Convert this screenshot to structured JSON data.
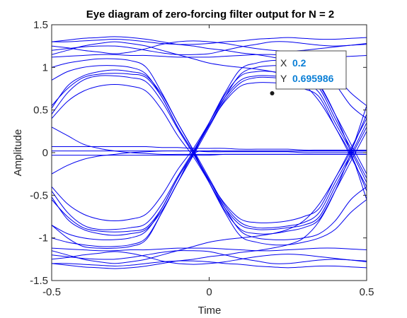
{
  "chart_data": {
    "type": "line",
    "title": "Eye diagram of zero-forcing filter output for N = 2",
    "xlabel": "Time",
    "ylabel": "Amplitude",
    "xlim": [
      -0.5,
      0.5
    ],
    "ylim": [
      -1.5,
      1.5
    ],
    "xticks": [
      -0.5,
      0,
      0.5
    ],
    "xtick_labels": [
      "-0.5",
      "0",
      "0.5"
    ],
    "yticks": [
      -1.5,
      -1,
      -0.5,
      0,
      0.5,
      1,
      1.5
    ],
    "ytick_labels": [
      "-1.5",
      "-1",
      "-0.5",
      "0",
      "0.5",
      "1",
      "1.5"
    ],
    "grid": false,
    "line_color": "#0000ee",
    "x": [
      -0.5,
      -0.45,
      -0.4,
      -0.35,
      -0.3,
      -0.25,
      -0.2,
      -0.15,
      -0.1,
      -0.05,
      0,
      0.05,
      0.1,
      0.15,
      0.2,
      0.25,
      0.3,
      0.35,
      0.4,
      0.45,
      0.5
    ],
    "series": [
      {
        "values": [
          1.3,
          1.3,
          1.31,
          1.32,
          1.33,
          1.32,
          1.3,
          1.28,
          1.27,
          1.27,
          1.28,
          1.3,
          1.31,
          1.33,
          1.34,
          1.35,
          1.34,
          1.33,
          1.33,
          1.34,
          1.35
        ]
      },
      {
        "values": [
          1.2,
          1.22,
          1.24,
          1.25,
          1.25,
          1.23,
          1.2,
          1.17,
          1.15,
          1.15,
          1.16,
          1.2,
          1.24,
          1.27,
          1.3,
          1.3,
          1.28,
          1.26,
          1.25,
          1.26,
          1.27
        ]
      },
      {
        "values": [
          1.12,
          1.13,
          1.14,
          1.15,
          1.15,
          1.14,
          1.14,
          1.13,
          1.12,
          1.12,
          1.12,
          1.13,
          1.14,
          1.15,
          1.15,
          1.14,
          1.13,
          1.12,
          1.12,
          1.13,
          1.14
        ]
      },
      {
        "values": [
          1.25,
          1.23,
          1.2,
          1.18,
          1.16,
          1.18,
          1.22,
          1.27,
          1.3,
          1.31,
          1.3,
          1.28,
          1.25,
          1.22,
          1.2,
          1.19,
          1.2,
          1.22,
          1.24,
          1.26,
          1.28
        ]
      },
      {
        "values": [
          -1.3,
          -1.3,
          -1.31,
          -1.32,
          -1.33,
          -1.32,
          -1.3,
          -1.28,
          -1.27,
          -1.27,
          -1.28,
          -1.3,
          -1.31,
          -1.33,
          -1.34,
          -1.35,
          -1.34,
          -1.33,
          -1.33,
          -1.34,
          -1.35
        ]
      },
      {
        "values": [
          -1.2,
          -1.22,
          -1.24,
          -1.25,
          -1.25,
          -1.23,
          -1.2,
          -1.17,
          -1.15,
          -1.15,
          -1.16,
          -1.2,
          -1.24,
          -1.27,
          -1.3,
          -1.3,
          -1.28,
          -1.26,
          -1.25,
          -1.26,
          -1.27
        ]
      },
      {
        "values": [
          -1.12,
          -1.13,
          -1.14,
          -1.15,
          -1.15,
          -1.14,
          -1.14,
          -1.13,
          -1.12,
          -1.12,
          -1.12,
          -1.13,
          -1.14,
          -1.15,
          -1.15,
          -1.14,
          -1.13,
          -1.12,
          -1.12,
          -1.13,
          -1.14
        ]
      },
      {
        "values": [
          -1.25,
          -1.23,
          -1.2,
          -1.18,
          -1.16,
          -1.18,
          -1.22,
          -1.27,
          -1.3,
          -1.31,
          -1.3,
          -1.28,
          -1.25,
          -1.22,
          -1.2,
          -1.19,
          -1.2,
          -1.22,
          -1.24,
          -1.26,
          -1.28
        ]
      },
      {
        "values": [
          0.55,
          0.75,
          0.88,
          0.92,
          0.93,
          0.92,
          0.88,
          0.65,
          0.3,
          0.0,
          -0.35,
          -0.65,
          -0.85,
          -0.9,
          -0.9,
          -0.88,
          -0.85,
          -0.75,
          -0.4,
          -0.05,
          0.3
        ]
      },
      {
        "values": [
          0.45,
          0.7,
          0.85,
          0.9,
          0.9,
          0.88,
          0.83,
          0.6,
          0.28,
          -0.02,
          -0.33,
          -0.6,
          -0.78,
          -0.82,
          -0.82,
          -0.8,
          -0.75,
          -0.65,
          -0.3,
          0.02,
          0.45
        ]
      },
      {
        "values": [
          0.52,
          0.78,
          0.9,
          0.95,
          0.97,
          0.95,
          0.9,
          0.68,
          0.35,
          0.03,
          -0.3,
          -0.62,
          -0.82,
          -0.88,
          -0.88,
          -0.86,
          -0.82,
          -0.7,
          -0.35,
          -0.02,
          0.35
        ]
      },
      {
        "values": [
          0.4,
          0.6,
          0.72,
          0.78,
          0.8,
          0.78,
          0.72,
          0.5,
          0.2,
          -0.05,
          -0.35,
          -0.68,
          -0.9,
          -0.95,
          -0.95,
          -0.92,
          -0.88,
          -0.78,
          -0.45,
          -0.1,
          0.25
        ]
      },
      {
        "values": [
          -0.55,
          -0.75,
          -0.88,
          -0.92,
          -0.93,
          -0.92,
          -0.88,
          -0.65,
          -0.3,
          0.0,
          0.35,
          0.65,
          0.85,
          0.9,
          0.9,
          0.88,
          0.85,
          0.75,
          0.4,
          0.05,
          -0.3
        ]
      },
      {
        "values": [
          -0.45,
          -0.7,
          -0.85,
          -0.9,
          -0.9,
          -0.88,
          -0.83,
          -0.6,
          -0.28,
          0.02,
          0.33,
          0.6,
          0.78,
          0.82,
          0.82,
          0.8,
          0.75,
          0.65,
          0.3,
          -0.02,
          -0.45
        ]
      },
      {
        "values": [
          -0.52,
          -0.78,
          -0.9,
          -0.95,
          -0.97,
          -0.95,
          -0.9,
          -0.68,
          -0.35,
          -0.03,
          0.3,
          0.62,
          0.82,
          0.88,
          0.88,
          0.86,
          0.82,
          0.7,
          0.35,
          0.02,
          -0.35
        ]
      },
      {
        "values": [
          -0.4,
          -0.6,
          -0.72,
          -0.78,
          -0.8,
          -0.78,
          -0.72,
          -0.5,
          -0.2,
          0.05,
          0.35,
          0.68,
          0.9,
          0.95,
          0.95,
          0.92,
          0.88,
          0.78,
          0.45,
          0.1,
          -0.25
        ]
      },
      {
        "values": [
          1.0,
          1.05,
          1.08,
          1.1,
          1.1,
          1.08,
          1.0,
          0.7,
          0.35,
          0.02,
          -0.35,
          -0.7,
          -0.98,
          -1.05,
          -1.08,
          -1.08,
          -1.05,
          -1.0,
          -0.9,
          -0.7,
          -0.55
        ]
      },
      {
        "values": [
          0.85,
          0.95,
          1.0,
          1.02,
          1.02,
          1.0,
          0.92,
          0.65,
          0.3,
          0.0,
          -0.32,
          -0.65,
          -0.92,
          -1.0,
          -1.02,
          -1.02,
          -1.0,
          -0.95,
          -0.8,
          -0.55,
          -0.4
        ]
      },
      {
        "values": [
          -1.0,
          -1.05,
          -1.08,
          -1.1,
          -1.1,
          -1.08,
          -1.0,
          -0.7,
          -0.35,
          -0.02,
          0.35,
          0.7,
          0.98,
          1.05,
          1.08,
          1.08,
          1.05,
          1.0,
          0.9,
          0.7,
          0.55
        ]
      },
      {
        "values": [
          -0.85,
          -0.95,
          -1.0,
          -1.02,
          -1.02,
          -1.0,
          -0.92,
          -0.65,
          -0.3,
          0.0,
          0.32,
          0.65,
          0.92,
          1.0,
          1.02,
          1.02,
          1.0,
          0.95,
          0.8,
          0.55,
          0.4
        ]
      },
      {
        "values": [
          1.15,
          1.2,
          1.25,
          1.28,
          1.3,
          1.28,
          1.25,
          1.2,
          1.15,
          1.1,
          1.05,
          1.02,
          1.0,
          0.98,
          0.95,
          0.9,
          0.8,
          0.6,
          0.3,
          -0.05,
          -0.4
        ]
      },
      {
        "values": [
          1.3,
          1.32,
          1.34,
          1.35,
          1.36,
          1.35,
          1.33,
          1.3,
          1.27,
          1.25,
          1.22,
          1.2,
          1.17,
          1.15,
          1.12,
          1.08,
          1.0,
          0.8,
          0.45,
          0.0,
          -0.55
        ]
      },
      {
        "values": [
          -1.15,
          -1.2,
          -1.25,
          -1.28,
          -1.3,
          -1.28,
          -1.25,
          -1.2,
          -1.15,
          -1.1,
          -1.05,
          -1.02,
          -1.0,
          -0.98,
          -0.95,
          -0.9,
          -0.8,
          -0.6,
          -0.3,
          0.05,
          0.4
        ]
      },
      {
        "values": [
          -1.3,
          -1.32,
          -1.34,
          -1.35,
          -1.36,
          -1.35,
          -1.33,
          -1.3,
          -1.27,
          -1.25,
          -1.22,
          -1.2,
          -1.17,
          -1.15,
          -1.12,
          -1.08,
          -1.0,
          -0.8,
          -0.45,
          0.0,
          0.55
        ]
      },
      {
        "values": [
          0.07,
          0.07,
          0.07,
          0.07,
          0.07,
          0.07,
          0.07,
          0.06,
          0.06,
          0.05,
          0.05,
          0.05,
          0.04,
          0.04,
          0.04,
          0.04,
          0.03,
          0.03,
          0.03,
          0.03,
          0.03
        ]
      },
      {
        "values": [
          -0.03,
          -0.03,
          -0.03,
          -0.03,
          -0.03,
          -0.03,
          -0.03,
          -0.03,
          -0.03,
          -0.03,
          -0.03,
          -0.02,
          -0.02,
          -0.02,
          -0.02,
          -0.02,
          -0.02,
          -0.02,
          -0.02,
          -0.02,
          -0.02
        ]
      },
      {
        "values": [
          0.02,
          0.02,
          0.02,
          0.02,
          0.02,
          0.02,
          0.02,
          0.02,
          0.02,
          0.02,
          0.01,
          0.01,
          0.01,
          0.01,
          0.01,
          0.01,
          0.0,
          0.0,
          0.0,
          0.0,
          0.0
        ]
      },
      {
        "values": [
          -0.25,
          -0.15,
          -0.08,
          -0.04,
          -0.02,
          0.0,
          0.01,
          0.02,
          0.02,
          0.02,
          0.02,
          0.02,
          0.02,
          0.02,
          0.02,
          0.02,
          0.02,
          0.02,
          0.02,
          0.02,
          0.02
        ]
      },
      {
        "values": [
          0.3,
          0.2,
          0.1,
          0.05,
          0.02,
          0.0,
          -0.01,
          -0.02,
          -0.02,
          -0.02,
          -0.02,
          -0.02,
          -0.02,
          -0.02,
          -0.02,
          -0.02,
          -0.02,
          -0.02,
          -0.02,
          -0.02,
          -0.02
        ]
      },
      {
        "values": [
          -0.85,
          -1.0,
          -1.1,
          -1.12,
          -1.12,
          -1.1,
          -1.02,
          -0.7,
          -0.35,
          -0.02,
          0.02,
          0.02,
          0.02,
          0.02,
          0.02,
          0.02,
          0.02,
          0.02,
          0.02,
          0.02,
          0.02
        ]
      }
    ],
    "datatip": {
      "x_label": "X",
      "x_value": "0.2",
      "y_label": "Y",
      "y_value": "0.695986",
      "point": [
        0.2,
        0.695986
      ]
    }
  }
}
